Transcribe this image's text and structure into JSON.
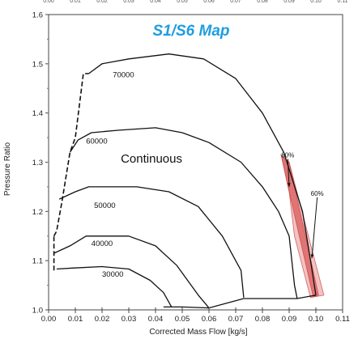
{
  "chart_data": {
    "type": "line",
    "title": "S1/S6 Map",
    "xlabel": "Corrected Mass Flow [kg/s]",
    "ylabel": "Pressure Ratio",
    "xlim": [
      0,
      0.11
    ],
    "ylim": [
      1.0,
      1.6
    ],
    "x_ticks": [
      "0.00",
      "0.01",
      "0.02",
      "0.03",
      "0.04",
      "0.05",
      "0.06",
      "0.07",
      "0.08",
      "0.09",
      "0.10",
      "0.11"
    ],
    "y_ticks": [
      "1.0",
      "1.1",
      "1.2",
      "1.3",
      "1.4",
      "1.5",
      "1.6"
    ],
    "x_tick_values": [
      0,
      0.01,
      0.02,
      0.03,
      0.04,
      0.05,
      0.06,
      0.07,
      0.08,
      0.09,
      0.1,
      0.11
    ],
    "y_tick_values": [
      1.0,
      1.1,
      1.2,
      1.3,
      1.4,
      1.5,
      1.6
    ],
    "region_label": "Continuous",
    "speed_lines": [
      {
        "name": "30000",
        "label_at": [
          0.02,
          1.067
        ],
        "points": [
          [
            0.003,
            1.083
          ],
          [
            0.009,
            1.085
          ],
          [
            0.02,
            1.088
          ],
          [
            0.03,
            1.083
          ],
          [
            0.038,
            1.06
          ],
          [
            0.043,
            1.035
          ],
          [
            0.046,
            1.006
          ]
        ]
      },
      {
        "name": "40000",
        "label_at": [
          0.016,
          1.13
        ],
        "points": [
          [
            0.002,
            1.115
          ],
          [
            0.008,
            1.13
          ],
          [
            0.014,
            1.15
          ],
          [
            0.03,
            1.15
          ],
          [
            0.04,
            1.13
          ],
          [
            0.048,
            1.09
          ],
          [
            0.056,
            1.03
          ],
          [
            0.06,
            1.004
          ]
        ]
      },
      {
        "name": "50000",
        "label_at": [
          0.017,
          1.207
        ],
        "points": [
          [
            0.004,
            1.225
          ],
          [
            0.01,
            1.24
          ],
          [
            0.015,
            1.25
          ],
          [
            0.033,
            1.25
          ],
          [
            0.045,
            1.24
          ],
          [
            0.056,
            1.21
          ],
          [
            0.065,
            1.15
          ],
          [
            0.072,
            1.08
          ],
          [
            0.073,
            1.025
          ]
        ]
      },
      {
        "name": "60000",
        "label_at": [
          0.014,
          1.338
        ],
        "points": [
          [
            0.008,
            1.32
          ],
          [
            0.011,
            1.345
          ],
          [
            0.016,
            1.36
          ],
          [
            0.026,
            1.365
          ],
          [
            0.04,
            1.37
          ],
          [
            0.05,
            1.36
          ],
          [
            0.06,
            1.34
          ],
          [
            0.072,
            1.3
          ],
          [
            0.08,
            1.25
          ],
          [
            0.086,
            1.2
          ],
          [
            0.09,
            1.15
          ],
          [
            0.092,
            1.05
          ],
          [
            0.093,
            1.023
          ]
        ]
      },
      {
        "name": "70000",
        "label_at": [
          0.024,
          1.473
        ],
        "points": [
          [
            0.015,
            1.48
          ],
          [
            0.02,
            1.5
          ],
          [
            0.03,
            1.51
          ],
          [
            0.045,
            1.52
          ],
          [
            0.058,
            1.51
          ],
          [
            0.07,
            1.47
          ],
          [
            0.08,
            1.4
          ],
          [
            0.088,
            1.32
          ],
          [
            0.095,
            1.2
          ],
          [
            0.098,
            1.1
          ],
          [
            0.1,
            1.03
          ]
        ]
      }
    ],
    "surge_line": [
      [
        0.002,
        1.15
      ],
      [
        0.003,
        1.16
      ],
      [
        0.005,
        1.22
      ],
      [
        0.008,
        1.32
      ],
      [
        0.01,
        1.35
      ],
      [
        0.013,
        1.48
      ],
      [
        0.015,
        1.48
      ]
    ],
    "surge_left_extension": [
      [
        0.002,
        1.08
      ],
      [
        0.002,
        1.15
      ]
    ],
    "choke_line": [
      [
        0.043,
        1.006
      ],
      [
        0.05,
        1.006
      ],
      [
        0.06,
        1.004
      ],
      [
        0.073,
        1.023
      ],
      [
        0.086,
        1.023
      ],
      [
        0.093,
        1.023
      ],
      [
        0.1,
        1.03
      ]
    ],
    "efficiency_regions": [
      {
        "name": "80%",
        "label_at": [
          0.0895,
          1.31
        ],
        "arrow_to": [
          0.09,
          1.25
        ],
        "points": [
          [
            0.087,
            1.315
          ],
          [
            0.09,
            1.3
          ],
          [
            0.101,
            1.03
          ],
          [
            0.099,
            1.027
          ],
          [
            0.09,
            1.24
          ]
        ]
      },
      {
        "name": "60%",
        "label_at": [
          0.1005,
          1.232
        ],
        "arrow_to": [
          0.0985,
          1.105
        ],
        "points": [
          [
            0.087,
            1.315
          ],
          [
            0.09,
            1.3
          ],
          [
            0.103,
            1.03
          ],
          [
            0.098,
            1.025
          ],
          [
            0.092,
            1.15
          ],
          [
            0.09,
            1.24
          ]
        ]
      }
    ],
    "top_ticks": [
      "0.00",
      "0.01",
      "0.02",
      "0.03",
      "0.04",
      "0.05",
      "0.06",
      "0.07",
      "0.08",
      "0.09",
      "0.10",
      "0.11"
    ],
    "grid": false,
    "colors": {
      "line": "#111111",
      "title": "#1e9de0",
      "eff_outer": "#f2b8b8",
      "eff_inner": "#e06c6c",
      "eff_edge": "#c84848"
    }
  }
}
